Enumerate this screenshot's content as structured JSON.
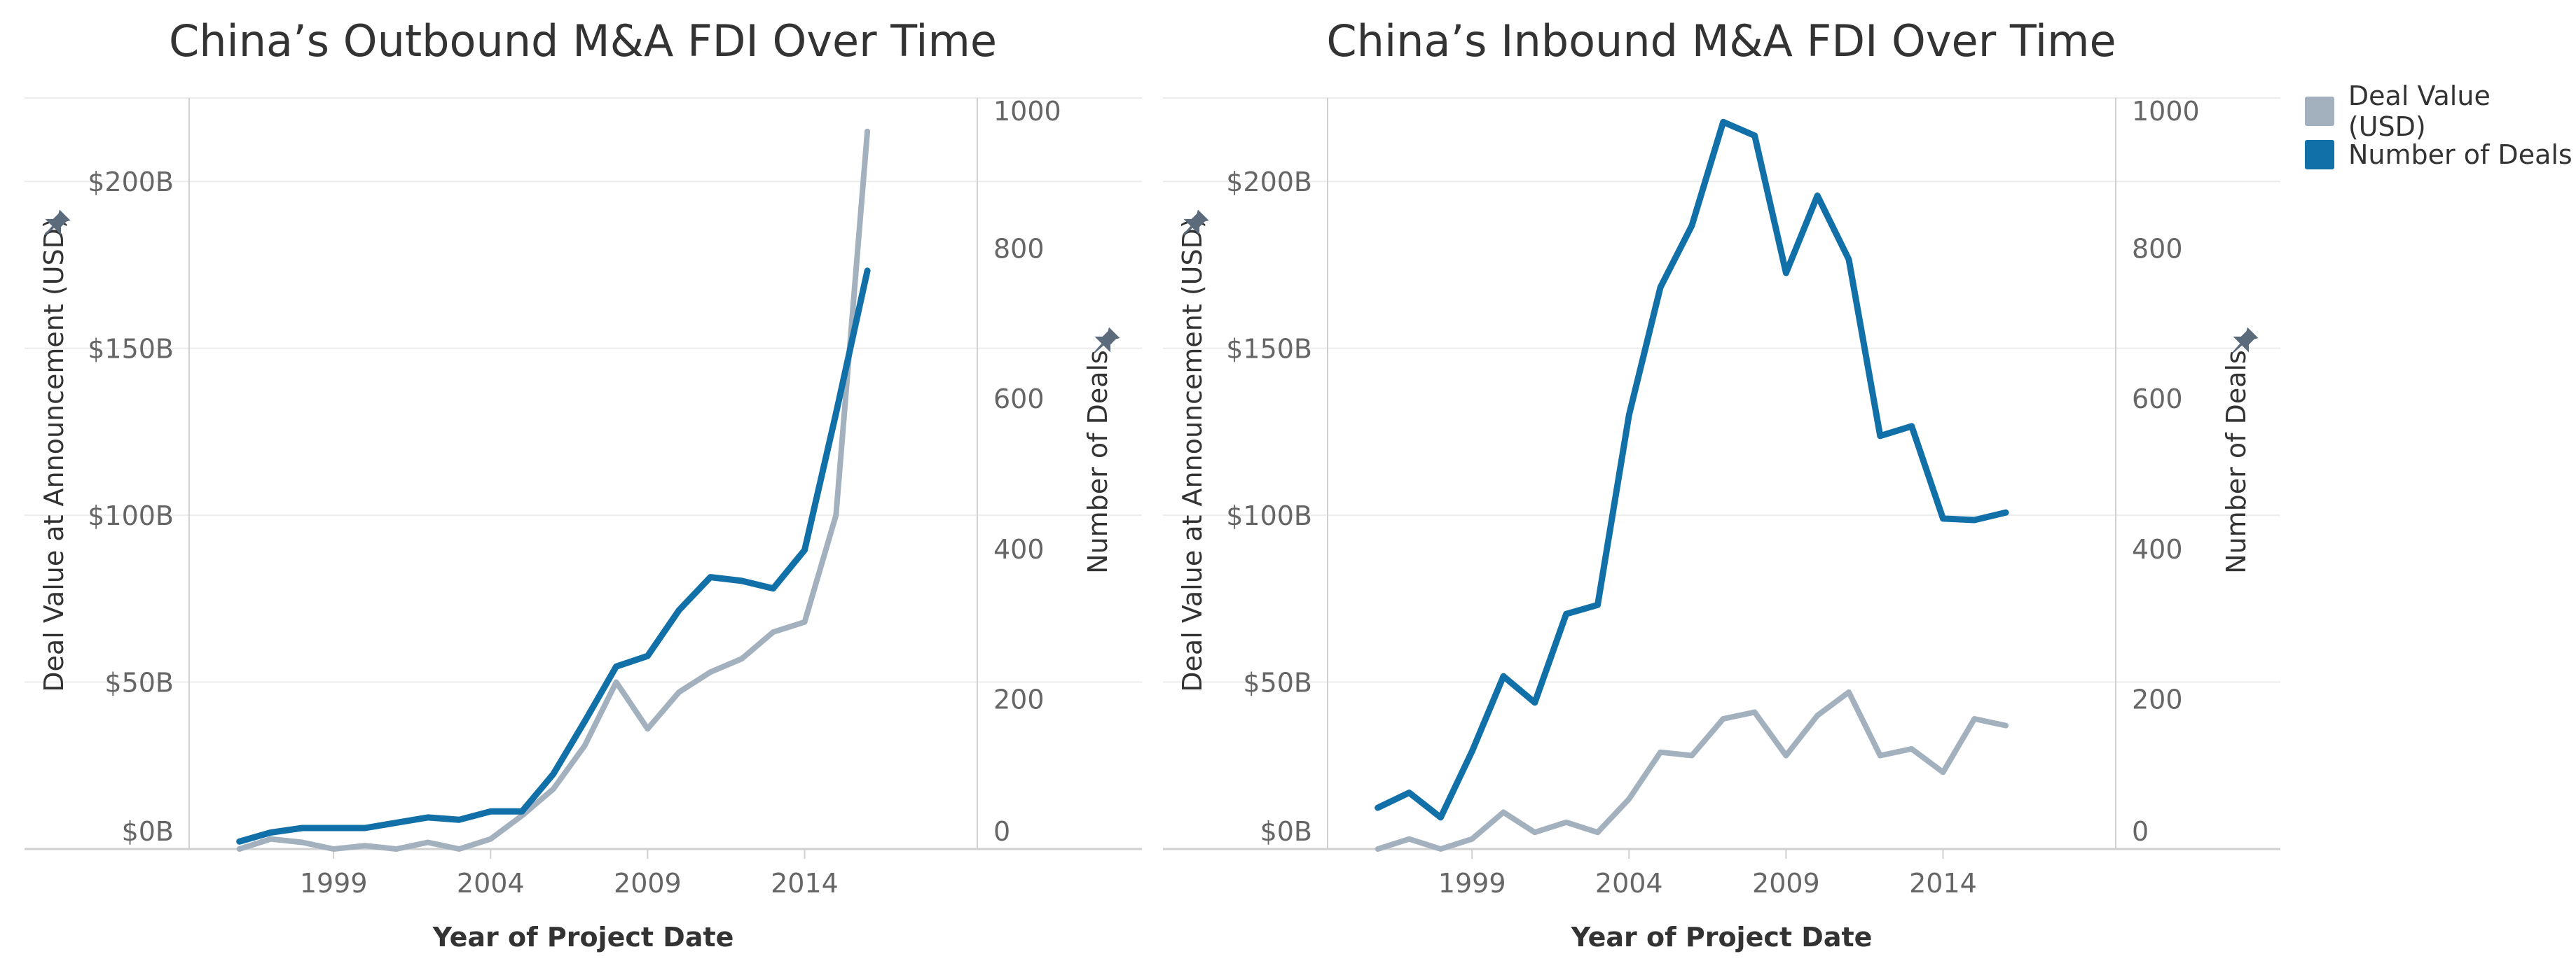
{
  "colors": {
    "deal_value": "#a3b1bf",
    "number_of_deals": "#1270a8",
    "axis_text": "#666666",
    "title_text": "#333333",
    "grid": "#ececec",
    "axis_line": "#d0d0d0",
    "pin": "#5b6b7c"
  },
  "legend": {
    "items": [
      {
        "label": "Deal Value (USD)",
        "color_key": "deal_value"
      },
      {
        "label": "Number of Deals",
        "color_key": "number_of_deals"
      }
    ]
  },
  "chart_data": [
    {
      "type": "line",
      "title": "China’s Outbound M&A FDI Over Time",
      "xlabel": "Year of Project Date",
      "ylabel": "Deal Value at Announcement (USD)",
      "y2label": "Number of Deals",
      "x": [
        1996,
        1997,
        1998,
        1999,
        2000,
        2001,
        2002,
        2003,
        2004,
        2005,
        2006,
        2007,
        2008,
        2009,
        2010,
        2011,
        2012,
        2013,
        2014,
        2015,
        2016
      ],
      "xticks": [
        1999,
        2004,
        2009,
        2014
      ],
      "xlim": [
        1994.4,
        2019.5
      ],
      "ylim": [
        0,
        225
      ],
      "yticks": [
        0,
        50,
        100,
        150,
        200
      ],
      "ytick_labels": [
        "$0B",
        "$50B",
        "$100B",
        "$150B",
        "$200B"
      ],
      "y2lim": [
        0,
        1000
      ],
      "y2ticks": [
        0,
        200,
        400,
        600,
        800,
        1000
      ],
      "y2tick_labels": [
        "0",
        "200",
        "400",
        "600",
        "800",
        "1000"
      ],
      "series": [
        {
          "name": "Deal Value (USD)",
          "axis": "left",
          "color_key": "deal_value",
          "values": [
            0,
            3,
            2,
            0,
            1,
            0,
            2,
            0,
            3,
            10,
            18,
            31,
            50,
            36,
            47,
            53,
            57,
            65,
            68,
            100,
            215
          ]
        },
        {
          "name": "Number of Deals",
          "axis": "right",
          "color_key": "number_of_deals",
          "values": [
            10,
            22,
            28,
            28,
            28,
            35,
            42,
            39,
            50,
            50,
            100,
            170,
            243,
            257,
            318,
            362,
            357,
            347,
            398,
            580,
            770
          ]
        }
      ]
    },
    {
      "type": "line",
      "title": "China’s Inbound M&A FDI Over Time",
      "xlabel": "Year of Project Date",
      "ylabel": "Deal Value at Announcement (USD)",
      "y2label": "Number of Deals",
      "x": [
        1996,
        1997,
        1998,
        1999,
        2000,
        2001,
        2002,
        2003,
        2004,
        2005,
        2006,
        2007,
        2008,
        2009,
        2010,
        2011,
        2012,
        2013,
        2014,
        2015,
        2016
      ],
      "xticks": [
        1999,
        2004,
        2009,
        2014
      ],
      "xlim": [
        1994.4,
        2019.5
      ],
      "ylim": [
        0,
        225
      ],
      "yticks": [
        0,
        50,
        100,
        150,
        200
      ],
      "ytick_labels": [
        "$0B",
        "$50B",
        "$100B",
        "$150B",
        "$200B"
      ],
      "y2lim": [
        0,
        1000
      ],
      "y2ticks": [
        0,
        200,
        400,
        600,
        800,
        1000
      ],
      "y2tick_labels": [
        "0",
        "200",
        "400",
        "600",
        "800",
        "1000"
      ],
      "series": [
        {
          "name": "Deal Value (USD)",
          "axis": "left",
          "color_key": "deal_value",
          "values": [
            0,
            3,
            0,
            3,
            11,
            5,
            8,
            5,
            15,
            29,
            28,
            39,
            41,
            28,
            40,
            47,
            28,
            30,
            23,
            39,
            37
          ]
        },
        {
          "name": "Number of Deals",
          "axis": "right",
          "color_key": "number_of_deals",
          "values": [
            55,
            75,
            42,
            130,
            230,
            195,
            313,
            325,
            578,
            748,
            830,
            968,
            950,
            767,
            870,
            785,
            550,
            563,
            440,
            438,
            448
          ]
        }
      ]
    }
  ]
}
